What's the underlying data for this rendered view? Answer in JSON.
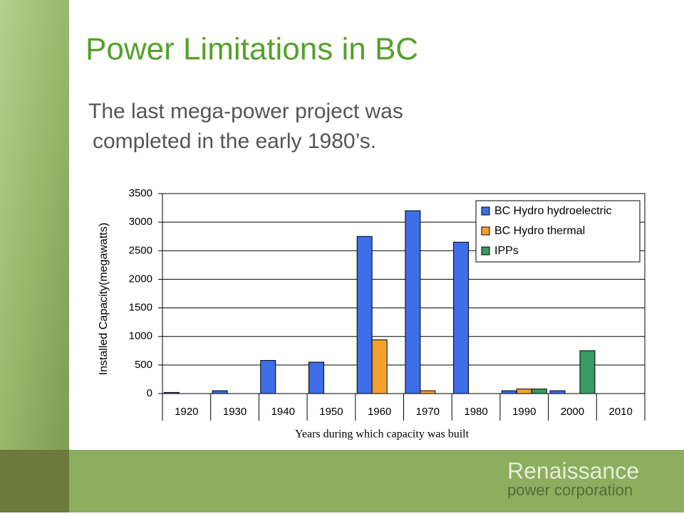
{
  "slide": {
    "title": "Power Limitations in BC",
    "body": [
      "The last mega-power project was",
      "completed in the early 1980’s."
    ],
    "logo": [
      "Renaissance",
      "power corporation"
    ]
  },
  "chart_data": {
    "type": "bar",
    "y_label": "Installed Capacity(megawatts)",
    "x_label": "Years during which capacity was built",
    "categories": [
      "1920",
      "1930",
      "1940",
      "1950",
      "1960",
      "1970",
      "1980",
      "1990",
      "2000",
      "2010"
    ],
    "series": [
      {
        "name": "BC Hydro hydroelectric",
        "color": "#3c6ee8",
        "values": [
          20,
          50,
          580,
          550,
          2750,
          3200,
          2650,
          50,
          50,
          0
        ]
      },
      {
        "name": "BC Hydro thermal",
        "color": "#f6a030",
        "values": [
          0,
          0,
          0,
          0,
          940,
          50,
          0,
          80,
          0,
          0
        ]
      },
      {
        "name": "IPPs",
        "color": "#3a9a62",
        "values": [
          0,
          0,
          0,
          0,
          0,
          0,
          0,
          80,
          750,
          0
        ]
      }
    ],
    "ylim": [
      0,
      3500
    ],
    "yticks": [
      0,
      500,
      1000,
      1500,
      2000,
      2500,
      3000,
      3500
    ],
    "grid": true,
    "legend": "upper right"
  }
}
